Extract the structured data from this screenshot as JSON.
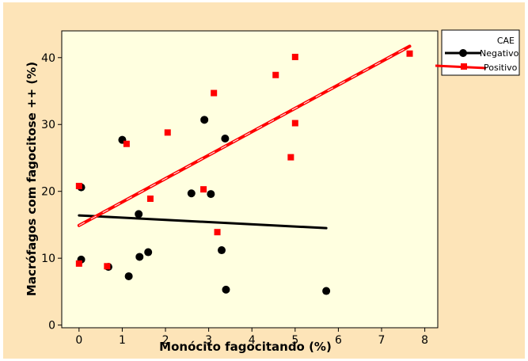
{
  "chart_data": {
    "type": "scatter",
    "xlabel": "Monócito fagocitando (%)",
    "ylabel": "Macrófagos com fagocitose ++ (%)",
    "xlim": [
      -0.4,
      8.3
    ],
    "ylim": [
      -0.4,
      44
    ],
    "x_ticks": [
      "0",
      "1",
      "2",
      "3",
      "4",
      "5",
      "6",
      "7",
      "8"
    ],
    "y_ticks": [
      "0",
      "10",
      "20",
      "30",
      "40"
    ],
    "grid": false,
    "legend": {
      "title": "CAE",
      "placement": "top-right-outside"
    },
    "series": [
      {
        "name": "Negativo",
        "color": "#000000",
        "marker": "circle",
        "points": [
          [
            0.05,
            20.6
          ],
          [
            0.05,
            9.8
          ],
          [
            0.68,
            8.7
          ],
          [
            1.0,
            27.7
          ],
          [
            1.15,
            7.3
          ],
          [
            1.38,
            16.6
          ],
          [
            1.4,
            10.2
          ],
          [
            1.6,
            10.9
          ],
          [
            2.6,
            19.7
          ],
          [
            2.9,
            30.7
          ],
          [
            3.05,
            19.6
          ],
          [
            3.3,
            11.2
          ],
          [
            3.38,
            27.9
          ],
          [
            3.4,
            5.3
          ],
          [
            5.72,
            5.1
          ]
        ],
        "fit": [
          [
            0.0,
            16.4
          ],
          [
            5.72,
            14.5
          ]
        ]
      },
      {
        "name": "Positivo",
        "color": "#ff0000",
        "marker": "square",
        "points": [
          [
            0.0,
            20.8
          ],
          [
            0.0,
            9.2
          ],
          [
            0.65,
            8.8
          ],
          [
            1.1,
            27.1
          ],
          [
            1.65,
            18.9
          ],
          [
            2.05,
            28.8
          ],
          [
            2.88,
            20.3
          ],
          [
            3.12,
            34.7
          ],
          [
            3.2,
            13.9
          ],
          [
            4.55,
            37.4
          ],
          [
            4.9,
            25.1
          ],
          [
            5.0,
            40.1
          ],
          [
            5.0,
            30.2
          ],
          [
            7.65,
            40.6
          ]
        ],
        "fit": [
          [
            0.0,
            14.9
          ],
          [
            7.65,
            41.7
          ]
        ]
      }
    ]
  }
}
